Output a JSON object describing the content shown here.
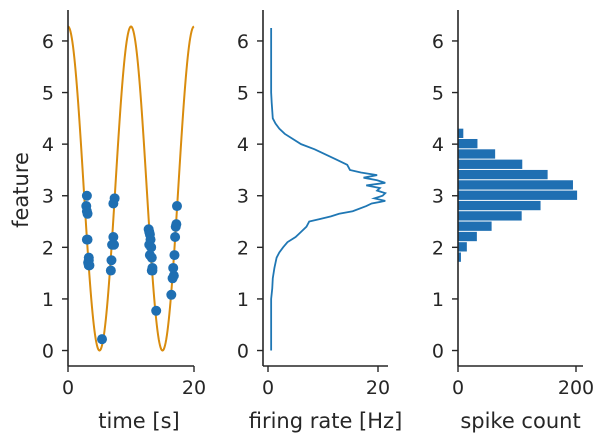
{
  "colors": {
    "curve": "#d98c0e",
    "points": "#1f6fb2",
    "rate_line": "#1f77b4",
    "bars": "#1f6fb2",
    "axes": "#262626"
  },
  "chart_data": [
    {
      "type": "scatter",
      "xlabel": "time [s]",
      "ylabel": "feature",
      "xlim": [
        0,
        20
      ],
      "ylim": [
        -0.3,
        6.6
      ],
      "xticks": [
        "0",
        "20"
      ],
      "yticks": [
        "0",
        "1",
        "2",
        "3",
        "4",
        "5",
        "6"
      ],
      "grid": false,
      "curve": {
        "name": "",
        "description_free": true,
        "fn": "3.14*(1+cos(2*pi*t/10))",
        "t_range": [
          0,
          20
        ]
      },
      "series": [
        {
          "x": [
            3.0,
            2.9,
            3.0,
            3.1,
            3.0,
            3.1,
            3.3,
            3.2,
            3.3,
            3.4,
            3.3,
            5.4,
            6.8,
            6.9,
            7.0,
            7.2,
            7.4,
            7.2,
            7.3,
            12.8,
            12.9,
            13.0,
            13.1,
            12.9,
            13.2,
            13.0,
            13.3,
            13.4,
            13.3,
            13.4,
            14.0,
            16.4,
            16.6,
            16.8,
            16.7,
            16.9,
            17.0,
            17.1,
            17.2,
            17.3
          ],
          "y": [
            3.0,
            2.8,
            2.7,
            2.65,
            2.15,
            2.15,
            1.8,
            1.7,
            1.75,
            1.65,
            1.65,
            0.22,
            1.55,
            1.75,
            2.05,
            2.2,
            2.95,
            2.85,
            2.05,
            2.35,
            2.3,
            2.25,
            2.15,
            2.05,
            2.0,
            1.85,
            1.8,
            1.6,
            1.55,
            1.55,
            0.77,
            1.08,
            1.4,
            1.45,
            1.6,
            1.85,
            2.2,
            2.4,
            2.45,
            2.8
          ]
        }
      ]
    },
    {
      "type": "line",
      "xlabel": "firing rate [Hz]",
      "ylabel": "",
      "xlim": [
        -1.5,
        21.5
      ],
      "ylim": [
        -0.3,
        6.6
      ],
      "xticks": [
        "0",
        "20"
      ],
      "yticks": [
        "0",
        "1",
        "2",
        "3",
        "4",
        "5",
        "6"
      ],
      "grid": false,
      "series": [
        {
          "y": [
            0.0,
            1.0,
            1.2,
            1.4,
            1.6,
            1.8,
            1.9,
            2.0,
            2.1,
            2.2,
            2.3,
            2.4,
            2.5,
            2.55,
            2.6,
            2.65,
            2.7,
            2.8,
            2.85,
            2.9,
            2.95,
            3.0,
            3.05,
            3.1,
            3.15,
            3.2,
            3.25,
            3.3,
            3.35,
            3.4,
            3.45,
            3.5,
            3.6,
            3.7,
            3.8,
            3.9,
            4.0,
            4.1,
            4.2,
            4.3,
            4.4,
            4.5,
            4.8,
            5.0,
            5.5,
            6.0,
            6.25
          ],
          "x": [
            0.0,
            0.0,
            0.2,
            0.3,
            0.6,
            1.0,
            1.5,
            2.2,
            3.0,
            4.5,
            5.5,
            6.5,
            7.0,
            9.0,
            11.0,
            12.5,
            15.0,
            17.5,
            18.5,
            21.0,
            19.0,
            20.5,
            21.0,
            19.5,
            20.0,
            17.5,
            21.0,
            19.5,
            17.0,
            19.5,
            16.5,
            14.5,
            14.0,
            12.0,
            10.0,
            8.0,
            5.5,
            4.0,
            2.5,
            1.5,
            0.8,
            0.3,
            0.1,
            0.0,
            0.0,
            0.0,
            0.0
          ]
        }
      ]
    },
    {
      "type": "bar",
      "orientation": "horizontal",
      "xlabel": "spike count",
      "ylabel": "",
      "xlim": [
        0,
        212
      ],
      "ylim": [
        -0.3,
        6.6
      ],
      "xticks": [
        "0",
        "200"
      ],
      "yticks": [
        "0",
        "1",
        "2",
        "3",
        "4",
        "5",
        "6"
      ],
      "grid": false,
      "bins": [
        {
          "y0": 1.7,
          "y1": 1.9,
          "value": 5
        },
        {
          "y0": 1.9,
          "y1": 2.1,
          "value": 15
        },
        {
          "y0": 2.1,
          "y1": 2.3,
          "value": 32
        },
        {
          "y0": 2.3,
          "y1": 2.5,
          "value": 57
        },
        {
          "y0": 2.5,
          "y1": 2.7,
          "value": 108
        },
        {
          "y0": 2.7,
          "y1": 2.9,
          "value": 140
        },
        {
          "y0": 2.9,
          "y1": 3.1,
          "value": 202
        },
        {
          "y0": 3.1,
          "y1": 3.3,
          "value": 195
        },
        {
          "y0": 3.3,
          "y1": 3.5,
          "value": 152
        },
        {
          "y0": 3.5,
          "y1": 3.7,
          "value": 109
        },
        {
          "y0": 3.7,
          "y1": 3.9,
          "value": 63
        },
        {
          "y0": 3.9,
          "y1": 4.1,
          "value": 33
        },
        {
          "y0": 4.1,
          "y1": 4.3,
          "value": 9
        }
      ]
    }
  ]
}
